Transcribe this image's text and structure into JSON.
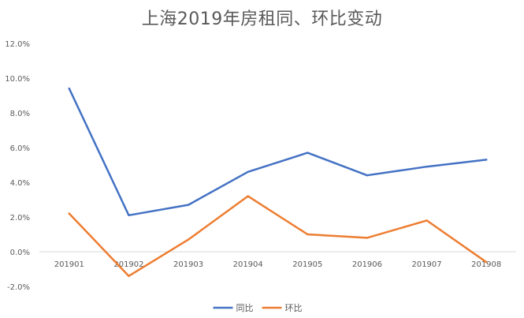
{
  "chart_data": {
    "type": "line",
    "title": "上海2019年房租同、环比变动",
    "xlabel": "",
    "ylabel": "",
    "categories": [
      "201901",
      "201902",
      "201903",
      "201904",
      "201905",
      "201906",
      "201907",
      "201908"
    ],
    "series": [
      {
        "name": "同比",
        "color": "#4472C4",
        "values": [
          9.4,
          2.1,
          2.7,
          4.6,
          5.7,
          4.4,
          4.9,
          5.3
        ]
      },
      {
        "name": "环比",
        "color": "#ED7D31",
        "values": [
          2.2,
          -1.4,
          0.7,
          3.2,
          1.0,
          0.8,
          1.8,
          -0.6
        ]
      }
    ],
    "ylim": [
      -2.0,
      12.0
    ],
    "yticks": [
      -2.0,
      0.0,
      2.0,
      4.0,
      6.0,
      8.0,
      10.0,
      12.0
    ],
    "ytick_labels": [
      "-2.0%",
      "0.0%",
      "2.0%",
      "4.0%",
      "6.0%",
      "8.0%",
      "10.0%",
      "12.0%"
    ],
    "grid": false,
    "legend_position": "bottom"
  }
}
